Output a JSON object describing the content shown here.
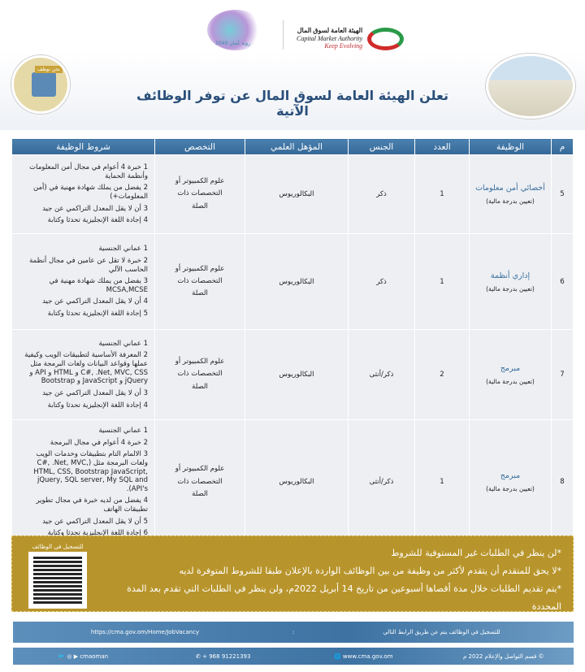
{
  "header": {
    "cma_logo": {
      "arabic": "الهيئة العامة لسوق المال",
      "english": "Capital Market Authority",
      "tagline": "Keep Evolving"
    },
    "vision_logo": "رؤية عُمان 2040",
    "chair_badge": "نحن نوظف",
    "title": "تعلن الهيئة العامة لسوق المال عن توفر الوظائف الآتية"
  },
  "table": {
    "columns": [
      "م",
      "الوظيفة",
      "العدد",
      "الجنس",
      "المؤهل العلمي",
      "التخصص",
      "شروط الوظيفة"
    ],
    "rows": [
      {
        "no": "5",
        "title": "أخصائي أمن معلومات",
        "subtitle": "(تعيين بدرجة مالية)",
        "count": "1",
        "gender": "ذكر",
        "qualification": "البكالوريوس",
        "specialty": "علوم الكمبيوتر أو التخصصات ذات الصلة",
        "conditions": [
          "1 خبرة 4 أعوام في مجال أمن المعلومات وأنظمة الحماية",
          "2 يفضل من يملك شهادة مهنية في (أمن المعلومات+)",
          "3 أن لا يقل المعدل التراكمي عن جيد",
          "4 إجادة اللغة الإنجليزية تحدثا وكتابة"
        ]
      },
      {
        "no": "6",
        "title": "إداري أنظمة",
        "subtitle": "(تعيين بدرجة مالية)",
        "count": "1",
        "gender": "ذكر",
        "qualification": "البكالوريوس",
        "specialty": "علوم الكمبيوتر أو التخصصات ذات الصلة",
        "conditions": [
          "1 عماني الجنسية",
          "2 خبرة لا تقل عن عامين في مجال أنظمة الحاسب الآلي",
          "3 يفضل من يملك شهادة مهنية في MCSA,MCSE",
          "4 أن لا يقل المعدل التراكمي عن جيد",
          "5 إجادة اللغة الإنجليزية تحدثا وكتابة"
        ]
      },
      {
        "no": "7",
        "title": "مبرمج",
        "subtitle": "(تعيين بدرجة مالية)",
        "count": "2",
        "gender": "ذكر/أنثى",
        "qualification": "البكالوريوس",
        "specialty": "علوم الكمبيوتر أو التخصصات ذات الصلة",
        "conditions": [
          "1 عماني الجنسية",
          "2 المعرفة الأساسية لتطبيقات الويب وكيفية عملها وقواعد البيانات ولغات البرمجة مثل C#, .Net, MVC, CSS و HTML و API و jQuery و JavaScript و Bootstrap",
          "3 أن لا يقل المعدل التراكمي عن جيد",
          "4 إجادة اللغة الإنجليزية تحدثا وكتابة"
        ]
      },
      {
        "no": "8",
        "title": "مبرمج",
        "subtitle": "(تعيين بدرجة مالية)",
        "count": "1",
        "gender": "ذكر/أنثى",
        "qualification": "البكالوريوس",
        "specialty": "علوم الكمبيوتر أو التخصصات ذات الصلة",
        "conditions": [
          "1 عماني الجنسية",
          "2 خبرة 4 أعوام في مجال البرمجة",
          "3 الالمام التام بتطبيقات وخدمات الويب ولغات البرمجة مثل (C#, .Net, MVC, HTML, CSS, Bootstrap JavaScript, jQuery, SQL server, My SQL and API's).",
          "4 يفضل من لديه خبرة في مجال تطوير تطبيقات الهاتف",
          "5 أن لا يقل المعدل التراكمي عن جيد",
          "6 إجادة اللغة الإنجليزية تحدثا وكتابة"
        ]
      }
    ]
  },
  "notes": {
    "items": [
      "*لن ينظر في الطلبات غير المستوفية للشروط",
      "*لا يحق للمتقدم أن يتقدم لأكثر من وظيفة من بين الوظائف الواردة بالإعلان طبقا للشروط المتوفرة لديه",
      "*يتم تقديم الطلبات خلال مدة أقصاها أسبوعين من تاريخ 14 أبريل 2022م، ولن ينظر في الطلبات التي تقدم بعد المدة المحددة"
    ],
    "qr_label": "للتسجيل في الوظائف"
  },
  "link_bar": {
    "text": "للتسجيل في الوظائف يتم عن طريق الرابط التالي",
    "separator": ":",
    "url": "https://cma.gov.om/Home/JobVacancy"
  },
  "footer": {
    "copyright": "© قسم التواصل والإعلام 2022 م",
    "website": "www.cma.gov.om",
    "phone": "+ 968 91221393",
    "social": "cmaoman"
  },
  "colors": {
    "header_blue": "#356896",
    "gold": "#b8952c",
    "row_bg": "#edeff3"
  }
}
